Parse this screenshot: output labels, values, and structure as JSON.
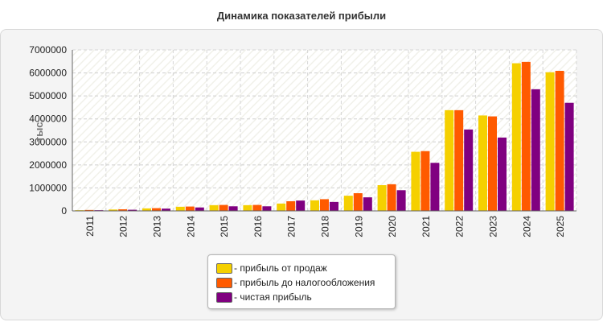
{
  "chart_data": {
    "type": "bar",
    "title": "Динамика показателей прибыли",
    "ylabel": "тыс.",
    "xlabel": "",
    "ylim": [
      0,
      7000000
    ],
    "yticks": [
      0,
      1000000,
      2000000,
      3000000,
      4000000,
      5000000,
      6000000,
      7000000
    ],
    "grid": true,
    "legend_position": "bottom",
    "categories": [
      "2011",
      "2012",
      "2013",
      "2014",
      "2015",
      "2016",
      "2017",
      "2018",
      "2019",
      "2020",
      "2021",
      "2022",
      "2023",
      "2024",
      "2025"
    ],
    "series": [
      {
        "name": "- прибыль от продаж",
        "color": "#f5d000",
        "values": [
          30000,
          60000,
          110000,
          180000,
          250000,
          250000,
          320000,
          460000,
          660000,
          1120000,
          2570000,
          4380000,
          4150000,
          6420000,
          6030000
        ]
      },
      {
        "name": "- прибыль до налогообложения",
        "color": "#ff5a00",
        "values": [
          40000,
          70000,
          120000,
          190000,
          260000,
          260000,
          420000,
          510000,
          770000,
          1160000,
          2600000,
          4380000,
          4110000,
          6480000,
          6090000
        ]
      },
      {
        "name": "- чистая прибыль",
        "color": "#800080",
        "values": [
          30000,
          50000,
          100000,
          150000,
          200000,
          200000,
          450000,
          390000,
          590000,
          900000,
          2090000,
          3540000,
          3190000,
          5290000,
          4700000
        ]
      }
    ]
  }
}
